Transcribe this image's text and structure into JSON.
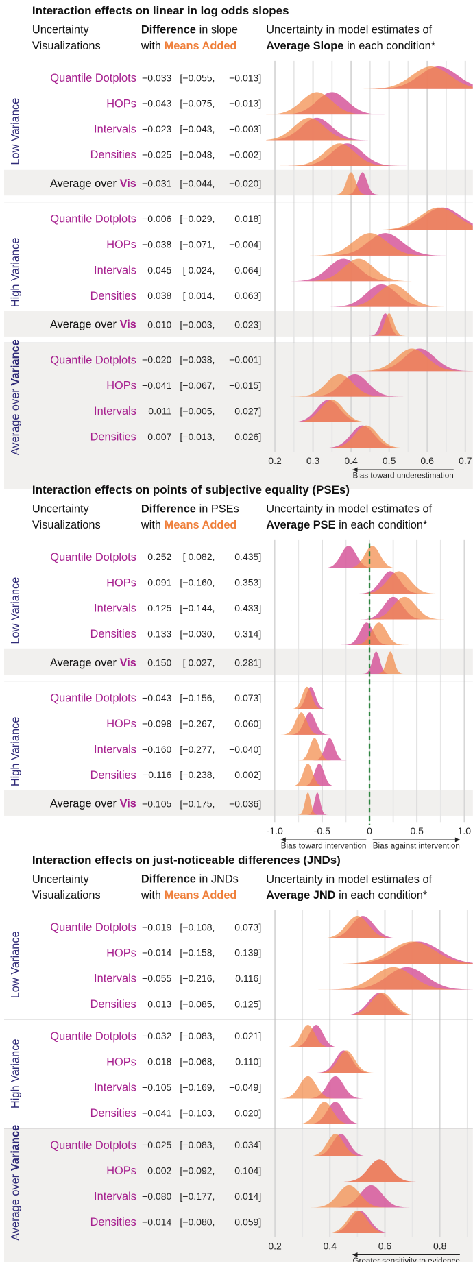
{
  "chart_data": [
    {
      "type": "ridgeline",
      "title": "Interaction effects on linear in log odds slopes",
      "col_headers": {
        "vis": [
          "Uncertainty",
          "Visualizations"
        ],
        "diff": {
          "bold": "Difference",
          "rest": "in slope",
          "with": "with",
          "highlight": "Means Added"
        },
        "est": {
          "line1": "Uncertainty in model estimates of",
          "bold": "Average Slope",
          "rest": "in each condition*"
        }
      },
      "xlim": [
        0.177,
        0.72
      ],
      "xticks": [
        0.2,
        0.3,
        0.4,
        0.5,
        0.6,
        0.7
      ],
      "minor_xticks": [
        0.25,
        0.35,
        0.45,
        0.55,
        0.65
      ],
      "grid": true,
      "colors": {
        "means_added": "#f28a4a",
        "baseline": "#d6579a"
      },
      "axis_labels": [
        {
          "text": "Bias toward underestimation",
          "direction": "left"
        }
      ],
      "groups": [
        {
          "name": "Low Variance",
          "shaded": false,
          "rows": [
            {
              "label": "Quantile Dotplots",
              "diff": [
                "−0.033",
                "[−0.055,",
                "−0.013]"
              ],
              "means_added": {
                "mean": 0.61,
                "sd": 0.05
              },
              "baseline": {
                "mean": 0.63,
                "sd": 0.05
              }
            },
            {
              "label": "HOPs",
              "diff": [
                "−0.043",
                "[−0.075,",
                "−0.013]"
              ],
              "means_added": {
                "mean": 0.31,
                "sd": 0.04
              },
              "baseline": {
                "mean": 0.35,
                "sd": 0.04
              }
            },
            {
              "label": "Intervals",
              "diff": [
                "−0.023",
                "[−0.043,",
                "−0.003]"
              ],
              "means_added": {
                "mean": 0.29,
                "sd": 0.04
              },
              "baseline": {
                "mean": 0.31,
                "sd": 0.04
              }
            },
            {
              "label": "Densities",
              "diff": [
                "−0.025",
                "[−0.048,",
                "−0.002]"
              ],
              "means_added": {
                "mean": 0.37,
                "sd": 0.04
              },
              "baseline": {
                "mean": 0.39,
                "sd": 0.04
              }
            },
            {
              "label": "Average over",
              "highlight": "Vis",
              "average": true,
              "diff": [
                "−0.031",
                "[−0.044,",
                "−0.020]"
              ],
              "means_added": {
                "mean": 0.4,
                "sd": 0.012
              },
              "baseline": {
                "mean": 0.43,
                "sd": 0.012
              }
            }
          ]
        },
        {
          "name": "High Variance",
          "shaded": false,
          "rows": [
            {
              "label": "Quantile Dotplots",
              "diff": [
                "−0.006",
                "[−0.029,",
                "0.018]"
              ],
              "means_added": {
                "mean": 0.63,
                "sd": 0.05
              },
              "baseline": {
                "mean": 0.64,
                "sd": 0.05
              }
            },
            {
              "label": "HOPs",
              "diff": [
                "−0.038",
                "[−0.071,",
                "−0.004]"
              ],
              "means_added": {
                "mean": 0.45,
                "sd": 0.045
              },
              "baseline": {
                "mean": 0.49,
                "sd": 0.045
              }
            },
            {
              "label": "Intervals",
              "diff": [
                "0.045",
                "[ 0.024,",
                "0.064]"
              ],
              "means_added": {
                "mean": 0.42,
                "sd": 0.04
              },
              "baseline": {
                "mean": 0.38,
                "sd": 0.04
              }
            },
            {
              "label": "Densities",
              "diff": [
                "0.038",
                "[ 0.014,",
                "0.063]"
              ],
              "means_added": {
                "mean": 0.51,
                "sd": 0.04
              },
              "baseline": {
                "mean": 0.48,
                "sd": 0.04
              }
            },
            {
              "label": "Average over",
              "highlight": "Vis",
              "average": true,
              "diff": [
                "0.010",
                "[−0.003,",
                "0.023]"
              ],
              "means_added": {
                "mean": 0.5,
                "sd": 0.012
              },
              "baseline": {
                "mean": 0.49,
                "sd": 0.012
              }
            }
          ]
        },
        {
          "name": "Average over",
          "highlight": "Variance",
          "shaded": true,
          "rows": [
            {
              "label": "Quantile Dotplots",
              "diff": [
                "−0.020",
                "[−0.038,",
                "−0.001]"
              ],
              "means_added": {
                "mean": 0.56,
                "sd": 0.04
              },
              "baseline": {
                "mean": 0.58,
                "sd": 0.04
              }
            },
            {
              "label": "HOPs",
              "diff": [
                "−0.041",
                "[−0.067,",
                "−0.015]"
              ],
              "means_added": {
                "mean": 0.37,
                "sd": 0.035
              },
              "baseline": {
                "mean": 0.41,
                "sd": 0.035
              }
            },
            {
              "label": "Intervals",
              "diff": [
                "0.011",
                "[−0.005,",
                "0.027]"
              ],
              "means_added": {
                "mean": 0.35,
                "sd": 0.03
              },
              "baseline": {
                "mean": 0.34,
                "sd": 0.03
              }
            },
            {
              "label": "Densities",
              "diff": [
                "0.007",
                "[−0.013,",
                "0.026]"
              ],
              "means_added": {
                "mean": 0.44,
                "sd": 0.03
              },
              "baseline": {
                "mean": 0.43,
                "sd": 0.03
              }
            }
          ]
        }
      ]
    },
    {
      "type": "ridgeline",
      "title": "Interaction effects on points of subjective equality (PSEs)",
      "col_headers": {
        "vis": [
          "Uncertainty",
          "Visualizations"
        ],
        "diff": {
          "bold": "Difference",
          "rest": "in PSEs",
          "with": "with",
          "highlight": "Means Added"
        },
        "est": {
          "line1": "Uncertainty in model estimates of",
          "bold": "Average PSE",
          "rest": "in each condition*"
        }
      },
      "xlim": [
        -1.09,
        1.09
      ],
      "xticks": [
        {
          "value": -1,
          "label": "-1.0"
        },
        -0.5,
        0,
        0.5,
        {
          "value": 1,
          "label": "1.0"
        }
      ],
      "minor_xticks": [
        -0.75,
        -0.25,
        0.25,
        0.75
      ],
      "grid": true,
      "reference_line": {
        "value": 0,
        "color": "#2e8540"
      },
      "colors": {
        "means_added": "#f28a4a",
        "baseline": "#d6579a"
      },
      "axis_labels": [
        {
          "text": "Bias toward intervention",
          "direction": "left"
        },
        {
          "text": "Bias against intervention",
          "direction": "right"
        }
      ],
      "groups": [
        {
          "name": "Low Variance",
          "shaded": false,
          "rows": [
            {
              "label": "Quantile Dotplots",
              "diff": [
                "0.252",
                "[ 0.082,",
                "0.435]"
              ],
              "means_added": {
                "mean": 0.03,
                "sd": 0.08
              },
              "baseline": {
                "mean": -0.22,
                "sd": 0.08
              }
            },
            {
              "label": "HOPs",
              "diff": [
                "0.091",
                "[−0.160,",
                "0.353]"
              ],
              "means_added": {
                "mean": 0.31,
                "sd": 0.12
              },
              "baseline": {
                "mean": 0.22,
                "sd": 0.1
              }
            },
            {
              "label": "Intervals",
              "diff": [
                "0.125",
                "[−0.144,",
                "0.433]"
              ],
              "means_added": {
                "mean": 0.37,
                "sd": 0.12
              },
              "baseline": {
                "mean": 0.25,
                "sd": 0.1
              }
            },
            {
              "label": "Densities",
              "diff": [
                "0.133",
                "[−0.030,",
                "0.314]"
              ],
              "means_added": {
                "mean": 0.1,
                "sd": 0.08
              },
              "baseline": {
                "mean": -0.03,
                "sd": 0.07
              }
            },
            {
              "label": "Average over",
              "highlight": "Vis",
              "average": true,
              "diff": [
                "0.150",
                "[ 0.027,",
                "0.281]"
              ],
              "means_added": {
                "mean": 0.22,
                "sd": 0.04
              },
              "baseline": {
                "mean": 0.07,
                "sd": 0.04
              }
            }
          ]
        },
        {
          "name": "High Variance",
          "shaded": false,
          "rows": [
            {
              "label": "Quantile Dotplots",
              "diff": [
                "−0.043",
                "[−0.156,",
                "0.073]"
              ],
              "means_added": {
                "mean": -0.66,
                "sd": 0.05
              },
              "baseline": {
                "mean": -0.62,
                "sd": 0.05
              }
            },
            {
              "label": "HOPs",
              "diff": [
                "−0.098",
                "[−0.267,",
                "0.060]"
              ],
              "means_added": {
                "mean": -0.72,
                "sd": 0.06
              },
              "baseline": {
                "mean": -0.63,
                "sd": 0.06
              }
            },
            {
              "label": "Intervals",
              "diff": [
                "−0.160",
                "[−0.277,",
                "−0.040]"
              ],
              "means_added": {
                "mean": -0.58,
                "sd": 0.05
              },
              "baseline": {
                "mean": -0.42,
                "sd": 0.05
              }
            },
            {
              "label": "Densities",
              "diff": [
                "−0.116",
                "[−0.238,",
                "0.002]"
              ],
              "means_added": {
                "mean": -0.65,
                "sd": 0.05
              },
              "baseline": {
                "mean": -0.53,
                "sd": 0.05
              }
            },
            {
              "label": "Average over",
              "highlight": "Vis",
              "average": true,
              "diff": [
                "−0.105",
                "[−0.175,",
                "−0.036]"
              ],
              "means_added": {
                "mean": -0.65,
                "sd": 0.03
              },
              "baseline": {
                "mean": -0.55,
                "sd": 0.03
              }
            }
          ]
        }
      ]
    },
    {
      "type": "ridgeline",
      "title": "Interaction effects on just-noticeable differences (JNDs)",
      "col_headers": {
        "vis": [
          "Uncertainty",
          "Visualizations"
        ],
        "diff": {
          "bold": "Difference",
          "rest": "in JNDs",
          "with": "with",
          "highlight": "Means Added"
        },
        "est": {
          "line1": "Uncertainty in model estimates of",
          "bold": "Average JND",
          "rest": "in each condition*"
        }
      },
      "xlim": [
        0.168,
        0.92
      ],
      "xticks": [
        0.2,
        0.4,
        0.6,
        0.8
      ],
      "minor_xticks": [
        0.3,
        0.5,
        0.7,
        0.9
      ],
      "grid": true,
      "colors": {
        "means_added": "#f28a4a",
        "baseline": "#d6579a"
      },
      "axis_labels": [
        {
          "text": "Greater sensitivity to evidence",
          "direction": "left"
        }
      ],
      "groups": [
        {
          "name": "Low Variance",
          "shaded": false,
          "rows": [
            {
              "label": "Quantile Dotplots",
              "diff": [
                "−0.019",
                "[−0.108,",
                "0.073]"
              ],
              "means_added": {
                "mean": 0.5,
                "sd": 0.04
              },
              "baseline": {
                "mean": 0.52,
                "sd": 0.04
              }
            },
            {
              "label": "HOPs",
              "diff": [
                "−0.014",
                "[−0.158,",
                "0.139]"
              ],
              "means_added": {
                "mean": 0.7,
                "sd": 0.08
              },
              "baseline": {
                "mean": 0.72,
                "sd": 0.08
              }
            },
            {
              "label": "Intervals",
              "diff": [
                "−0.055",
                "[−0.216,",
                "0.116]"
              ],
              "means_added": {
                "mean": 0.63,
                "sd": 0.07
              },
              "baseline": {
                "mean": 0.68,
                "sd": 0.07
              }
            },
            {
              "label": "Densities",
              "diff": [
                "0.013",
                "[−0.085,",
                "0.125]"
              ],
              "means_added": {
                "mean": 0.59,
                "sd": 0.04
              },
              "baseline": {
                "mean": 0.58,
                "sd": 0.04
              }
            }
          ]
        },
        {
          "name": "High Variance",
          "shaded": false,
          "rows": [
            {
              "label": "Quantile Dotplots",
              "diff": [
                "−0.032",
                "[−0.083,",
                "0.021]"
              ],
              "means_added": {
                "mean": 0.32,
                "sd": 0.025
              },
              "baseline": {
                "mean": 0.35,
                "sd": 0.025
              }
            },
            {
              "label": "HOPs",
              "diff": [
                "0.018",
                "[−0.068,",
                "0.110]"
              ],
              "means_added": {
                "mean": 0.46,
                "sd": 0.03
              },
              "baseline": {
                "mean": 0.45,
                "sd": 0.03
              }
            },
            {
              "label": "Intervals",
              "diff": [
                "−0.105",
                "[−0.169,",
                "−0.049]"
              ],
              "means_added": {
                "mean": 0.32,
                "sd": 0.03
              },
              "baseline": {
                "mean": 0.42,
                "sd": 0.03
              }
            },
            {
              "label": "Densities",
              "diff": [
                "−0.041",
                "[−0.103,",
                "0.020]"
              ],
              "means_added": {
                "mean": 0.38,
                "sd": 0.03
              },
              "baseline": {
                "mean": 0.42,
                "sd": 0.03
              }
            }
          ]
        },
        {
          "name": "Average over",
          "highlight": "Variance",
          "shaded": true,
          "rows": [
            {
              "label": "Quantile Dotplots",
              "diff": [
                "−0.025",
                "[−0.083,",
                "0.034]"
              ],
              "means_added": {
                "mean": 0.42,
                "sd": 0.03
              },
              "baseline": {
                "mean": 0.44,
                "sd": 0.03
              }
            },
            {
              "label": "HOPs",
              "diff": [
                "0.002",
                "[−0.092,",
                "0.104]"
              ],
              "means_added": {
                "mean": 0.58,
                "sd": 0.04
              },
              "baseline": {
                "mean": 0.58,
                "sd": 0.04
              }
            },
            {
              "label": "Intervals",
              "diff": [
                "−0.080",
                "[−0.177,",
                "0.014]"
              ],
              "means_added": {
                "mean": 0.47,
                "sd": 0.04
              },
              "baseline": {
                "mean": 0.55,
                "sd": 0.04
              }
            },
            {
              "label": "Densities",
              "diff": [
                "−0.014",
                "[−0.080,",
                "0.059]"
              ],
              "means_added": {
                "mean": 0.5,
                "sd": 0.035
              },
              "baseline": {
                "mean": 0.51,
                "sd": 0.035
              }
            }
          ]
        }
      ]
    }
  ]
}
